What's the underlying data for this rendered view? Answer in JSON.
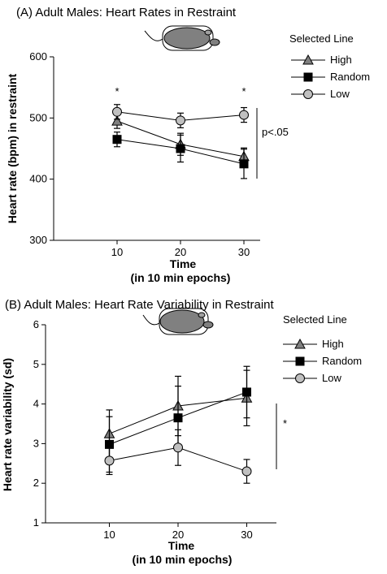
{
  "chart_data": [
    {
      "type": "line",
      "title": "(A) Adult Males: Heart Rates in Restraint",
      "xlabel": "Time",
      "xlabel_sub": "(in 10 min epochs)",
      "ylabel": "Heart rate (bpm) in restraint",
      "x": [
        10,
        20,
        30
      ],
      "xlim": [
        0,
        35
      ],
      "ylim": [
        300,
        600
      ],
      "yticks": [
        300,
        400,
        500,
        600
      ],
      "legend_title": "Selected Line",
      "legend_position": "top-right",
      "series": [
        {
          "name": "High",
          "marker": "triangle",
          "values": [
            495,
            457,
            437
          ],
          "err": [
            12,
            18,
            14
          ]
        },
        {
          "name": "Random",
          "marker": "square",
          "values": [
            465,
            450,
            425
          ],
          "err": [
            12,
            22,
            24
          ]
        },
        {
          "name": "Low",
          "marker": "circle",
          "values": [
            510,
            496,
            505
          ],
          "err": [
            12,
            12,
            12
          ]
        }
      ],
      "significance_marks": [
        {
          "x": 10,
          "label": "*"
        },
        {
          "x": 30,
          "label": "*"
        }
      ],
      "bracket_label": "p<.05"
    },
    {
      "type": "line",
      "title": "(B) Adult Males: Heart Rate Variability in Restraint",
      "xlabel": "Time",
      "xlabel_sub": "(in 10 min epochs)",
      "ylabel": "Heart rate variability (sd)",
      "x": [
        10,
        20,
        30
      ],
      "xlim": [
        0,
        37
      ],
      "ylim": [
        1,
        6
      ],
      "yticks": [
        1,
        2,
        3,
        4,
        5,
        6
      ],
      "legend_title": "Selected Line",
      "legend_position": "top-right",
      "series": [
        {
          "name": "High",
          "marker": "triangle",
          "values": [
            3.25,
            3.95,
            4.15
          ],
          "err": [
            0.6,
            0.75,
            0.7
          ]
        },
        {
          "name": "Random",
          "marker": "square",
          "values": [
            2.98,
            3.65,
            4.3
          ],
          "err": [
            0.7,
            0.8,
            0.65
          ]
        },
        {
          "name": "Low",
          "marker": "circle",
          "values": [
            2.57,
            2.9,
            2.3
          ],
          "err": [
            0.35,
            0.45,
            0.3
          ]
        }
      ],
      "bracket_label": "*"
    }
  ],
  "colors": {
    "triangle_fill": "#7f7f7f",
    "square_fill": "#000000",
    "circle_fill": "#c0c0c0",
    "mouse_body": "#808080"
  }
}
